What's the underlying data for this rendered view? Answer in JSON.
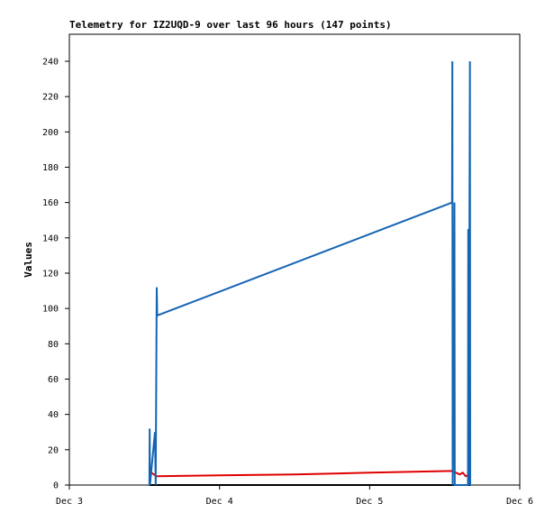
{
  "chart_data": {
    "type": "line",
    "title": "Telemetry for IZ2UQD-9 over last 96 hours (147 points)",
    "y_label": "Values",
    "xlim": [
      0,
      3
    ],
    "xticks": [
      {
        "value": 0,
        "label": "Dec 3"
      },
      {
        "value": 1,
        "label": "Dec 4"
      },
      {
        "value": 2,
        "label": "Dec 5"
      },
      {
        "value": 3,
        "label": "Dec 6"
      }
    ],
    "ylim": [
      0,
      255.3
    ],
    "yticks": [
      0,
      20,
      40,
      60,
      80,
      100,
      120,
      140,
      160,
      180,
      200,
      220,
      240
    ],
    "grid": false,
    "series": [
      {
        "color": "#000000",
        "x": [
          0.533,
          2.67
        ],
        "values": [
          0,
          0
        ]
      },
      {
        "color": "#e00000",
        "x": [
          0.546,
          0.58,
          1.0,
          1.5,
          2.0,
          2.55,
          2.6,
          2.62,
          2.64,
          2.67
        ],
        "values": [
          7,
          5,
          5.5,
          6,
          7,
          8,
          6,
          7,
          5,
          6
        ]
      },
      {
        "color": "#1464b4",
        "x": [
          0.533,
          0.535,
          0.537,
          0.57,
          0.575,
          0.582,
          0.585,
          2.549,
          2.551,
          2.553,
          2.56,
          2.565,
          2.567,
          2.655,
          2.657,
          2.66,
          2.668,
          2.67
        ],
        "values": [
          0,
          32,
          0,
          30,
          0,
          112,
          96,
          160,
          240,
          0,
          48,
          160,
          0,
          0,
          145,
          0,
          240,
          0
        ]
      }
    ]
  }
}
